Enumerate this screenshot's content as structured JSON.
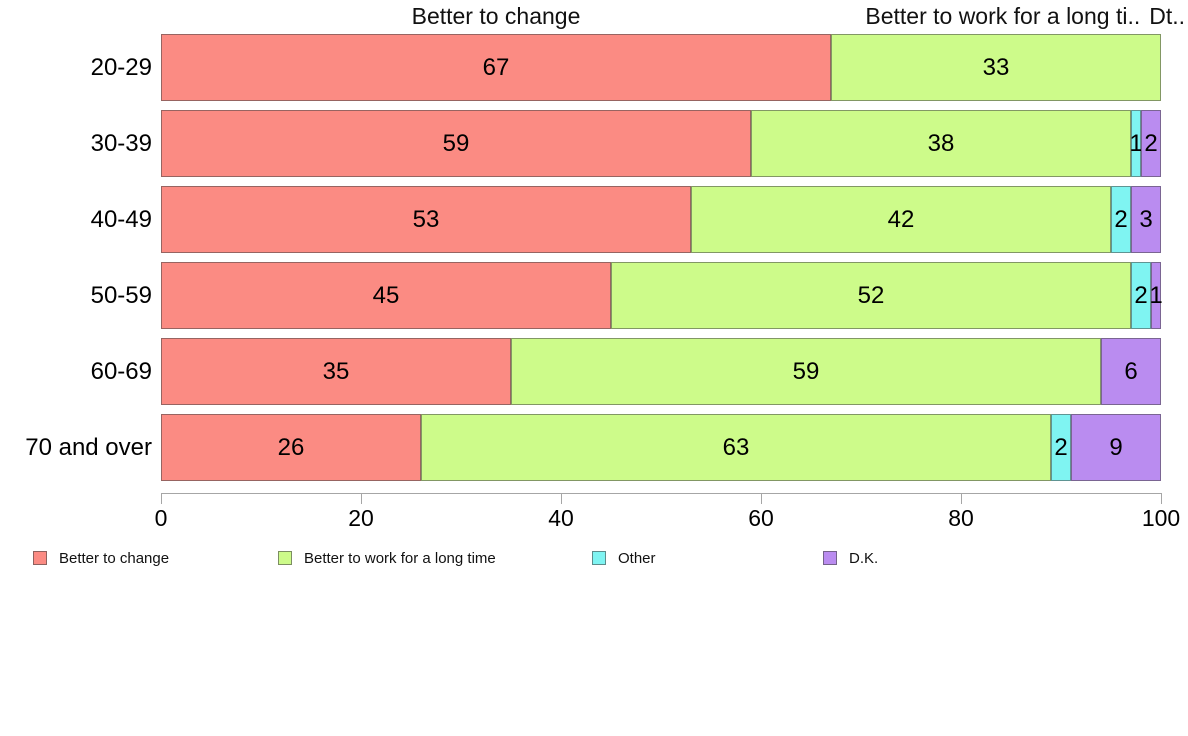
{
  "header": {
    "left": "Better to change",
    "right_truncated_1": "Better to work for a long ti..",
    "right_truncated_2": "Dt.."
  },
  "colors": {
    "better_to_change": "#FB8B83",
    "better_to_work_long": "#CDFB8A",
    "other": "#7FF4F2",
    "dk": "#BA8CF0",
    "axis": "#a6a6a6",
    "text": "#000000"
  },
  "chart_data": {
    "type": "bar",
    "orientation": "horizontal_stacked",
    "title": "",
    "xlabel": "",
    "ylabel": "",
    "xlim": [
      0,
      100
    ],
    "x_ticks": [
      0,
      20,
      40,
      60,
      80,
      100
    ],
    "grid": false,
    "legend_position": "bottom",
    "categories": [
      "20-29",
      "30-39",
      "40-49",
      "50-59",
      "60-69",
      "70 and over"
    ],
    "series": [
      {
        "name": "Better to change",
        "color": "#FB8B83",
        "values": [
          67,
          59,
          53,
          45,
          35,
          26
        ]
      },
      {
        "name": "Better to work for a long time",
        "color": "#CDFB8A",
        "values": [
          33,
          38,
          42,
          52,
          59,
          63
        ]
      },
      {
        "name": "Other",
        "color": "#7FF4F2",
        "values": [
          0,
          1,
          2,
          2,
          0,
          2
        ]
      },
      {
        "name": "D.K.",
        "color": "#BA8CF0",
        "values": [
          0,
          2,
          3,
          1,
          6,
          9
        ]
      }
    ]
  },
  "legend": {
    "items": [
      {
        "label": "Better to change",
        "color": "#FB8B83"
      },
      {
        "label": "Better to work for a long time",
        "color": "#CDFB8A"
      },
      {
        "label": "Other",
        "color": "#7FF4F2"
      },
      {
        "label": "D.K.",
        "color": "#BA8CF0"
      }
    ]
  }
}
